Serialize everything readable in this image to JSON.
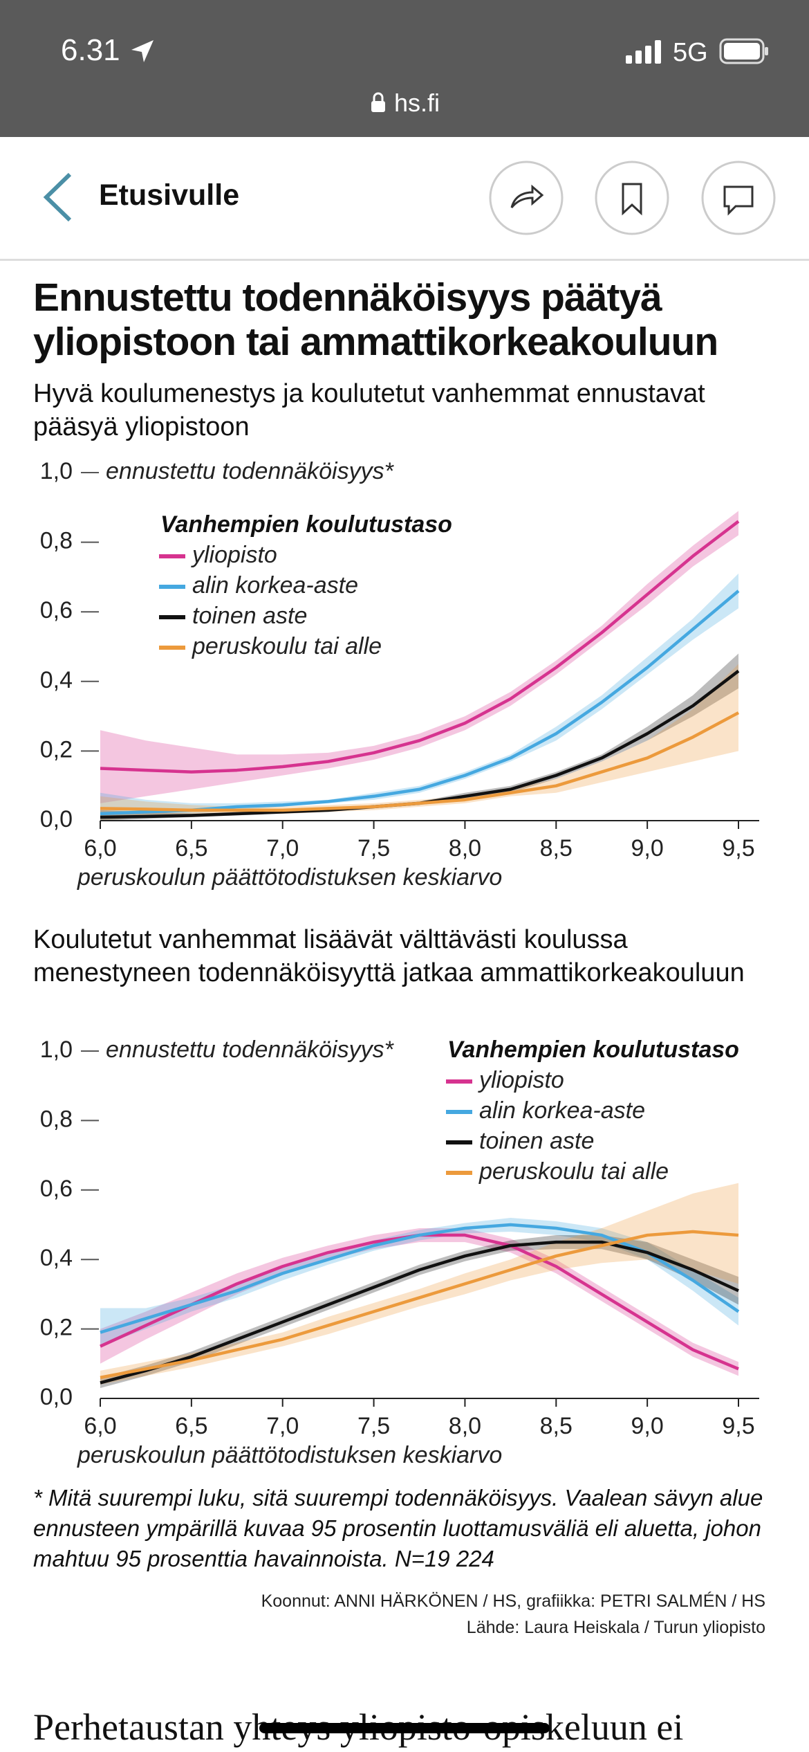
{
  "status_bar": {
    "time": "6.31",
    "network": "5G",
    "url": "hs.fi"
  },
  "nav": {
    "back": "Etusivulle"
  },
  "chart_data": [
    {
      "type": "line",
      "title": "Ennustettu todennäköisyys päätyä yliopistoon tai ammattikorkeakouluun",
      "subtitle": "Hyvä koulumenestys ja koulutetut vanhemmat ennustavat pääsyä yliopistoon",
      "y_label": "ennustettu todennäköisyys*",
      "x_label": "peruskoulun päättötodistuksen keskiarvo",
      "legend_title": "Vanhempien koulutustaso",
      "legend": "upper left",
      "x": [
        6.0,
        6.25,
        6.5,
        6.75,
        7.0,
        7.25,
        7.5,
        7.75,
        8.0,
        8.25,
        8.5,
        8.75,
        9.0,
        9.25,
        9.5
      ],
      "xlim": [
        6.0,
        9.5
      ],
      "ylim": [
        0,
        1
      ],
      "xticks": [
        {
          "value": 6.0,
          "label": "6,0"
        },
        {
          "value": 6.5,
          "label": "6,5"
        },
        {
          "value": 7.0,
          "label": "7,0"
        },
        {
          "value": 7.5,
          "label": "7,5"
        },
        {
          "value": 8.0,
          "label": "8,0"
        },
        {
          "value": 8.5,
          "label": "8,5"
        },
        {
          "value": 9.0,
          "label": "9,0"
        },
        {
          "value": 9.5,
          "label": "9,5"
        }
      ],
      "yticks": [
        {
          "value": 0,
          "label": "0,0"
        },
        {
          "value": 0.2,
          "label": "0,2"
        },
        {
          "value": 0.4,
          "label": "0,4"
        },
        {
          "value": 0.6,
          "label": "0,6"
        },
        {
          "value": 0.8,
          "label": "0,8"
        },
        {
          "value": 1,
          "label": "1,0"
        }
      ],
      "series": [
        {
          "name": "yliopisto",
          "color": "#d6338f",
          "values": [
            0.15,
            0.145,
            0.14,
            0.145,
            0.155,
            0.17,
            0.195,
            0.23,
            0.28,
            0.35,
            0.44,
            0.54,
            0.65,
            0.76,
            0.86
          ],
          "lower": [
            0.05,
            0.07,
            0.09,
            0.11,
            0.13,
            0.15,
            0.175,
            0.21,
            0.26,
            0.33,
            0.42,
            0.52,
            0.62,
            0.73,
            0.82
          ],
          "upper": [
            0.26,
            0.23,
            0.21,
            0.19,
            0.19,
            0.195,
            0.215,
            0.25,
            0.3,
            0.37,
            0.46,
            0.56,
            0.68,
            0.79,
            0.89
          ]
        },
        {
          "name": "alin korkea-aste",
          "color": "#45a8e0",
          "values": [
            0.02,
            0.025,
            0.03,
            0.04,
            0.045,
            0.055,
            0.07,
            0.09,
            0.13,
            0.18,
            0.25,
            0.34,
            0.44,
            0.55,
            0.66
          ],
          "lower": [
            0.0,
            0.01,
            0.02,
            0.03,
            0.04,
            0.05,
            0.06,
            0.08,
            0.12,
            0.17,
            0.23,
            0.32,
            0.42,
            0.52,
            0.61
          ],
          "upper": [
            0.08,
            0.06,
            0.05,
            0.05,
            0.055,
            0.06,
            0.08,
            0.1,
            0.14,
            0.19,
            0.27,
            0.36,
            0.47,
            0.58,
            0.71
          ]
        },
        {
          "name": "toinen aste",
          "color": "#111111",
          "values": [
            0.01,
            0.012,
            0.015,
            0.02,
            0.025,
            0.03,
            0.04,
            0.05,
            0.07,
            0.09,
            0.13,
            0.18,
            0.25,
            0.33,
            0.43
          ],
          "lower": [
            0.0,
            0.005,
            0.01,
            0.015,
            0.02,
            0.025,
            0.035,
            0.045,
            0.06,
            0.08,
            0.12,
            0.17,
            0.23,
            0.3,
            0.38
          ],
          "upper": [
            0.03,
            0.025,
            0.02,
            0.025,
            0.03,
            0.035,
            0.045,
            0.055,
            0.08,
            0.1,
            0.14,
            0.19,
            0.27,
            0.36,
            0.48
          ]
        },
        {
          "name": "peruskoulu tai alle",
          "color": "#ec9a3c",
          "values": [
            0.035,
            0.033,
            0.03,
            0.03,
            0.03,
            0.035,
            0.04,
            0.05,
            0.06,
            0.08,
            0.1,
            0.14,
            0.18,
            0.24,
            0.31
          ],
          "lower": [
            0.0,
            0.01,
            0.015,
            0.02,
            0.02,
            0.025,
            0.03,
            0.04,
            0.05,
            0.07,
            0.08,
            0.11,
            0.14,
            0.17,
            0.2
          ],
          "upper": [
            0.07,
            0.055,
            0.045,
            0.04,
            0.04,
            0.045,
            0.05,
            0.06,
            0.07,
            0.09,
            0.12,
            0.17,
            0.23,
            0.32,
            0.45
          ]
        }
      ]
    },
    {
      "type": "line",
      "subtitle": "Koulutetut vanhemmat lisäävät välttävästi koulussa menestyneen todennäköisyyttä jatkaa ammattikorkeakouluun",
      "y_label": "ennustettu todennäköisyys*",
      "x_label": "peruskoulun päättötodistuksen keskiarvo",
      "legend_title": "Vanhempien koulutustaso",
      "legend": "upper right",
      "x": [
        6.0,
        6.25,
        6.5,
        6.75,
        7.0,
        7.25,
        7.5,
        7.75,
        8.0,
        8.25,
        8.5,
        8.75,
        9.0,
        9.25,
        9.5
      ],
      "xlim": [
        6.0,
        9.5
      ],
      "ylim": [
        0,
        1
      ],
      "xticks": [
        {
          "value": 6.0,
          "label": "6,0"
        },
        {
          "value": 6.5,
          "label": "6,5"
        },
        {
          "value": 7.0,
          "label": "7,0"
        },
        {
          "value": 7.5,
          "label": "7,5"
        },
        {
          "value": 8.0,
          "label": "8,0"
        },
        {
          "value": 8.5,
          "label": "8,5"
        },
        {
          "value": 9.0,
          "label": "9,0"
        },
        {
          "value": 9.5,
          "label": "9,5"
        }
      ],
      "yticks": [
        {
          "value": 0,
          "label": "0,0"
        },
        {
          "value": 0.2,
          "label": "0,2"
        },
        {
          "value": 0.4,
          "label": "0,4"
        },
        {
          "value": 0.6,
          "label": "0,6"
        },
        {
          "value": 0.8,
          "label": "0,8"
        },
        {
          "value": 1,
          "label": "1,0"
        }
      ],
      "series": [
        {
          "name": "yliopisto",
          "color": "#d6338f",
          "values": [
            0.15,
            0.21,
            0.27,
            0.33,
            0.38,
            0.42,
            0.45,
            0.47,
            0.47,
            0.44,
            0.38,
            0.3,
            0.22,
            0.14,
            0.085
          ],
          "lower": [
            0.1,
            0.17,
            0.235,
            0.3,
            0.355,
            0.4,
            0.43,
            0.45,
            0.45,
            0.42,
            0.36,
            0.28,
            0.2,
            0.12,
            0.065
          ],
          "upper": [
            0.2,
            0.25,
            0.305,
            0.36,
            0.405,
            0.44,
            0.47,
            0.49,
            0.49,
            0.46,
            0.4,
            0.32,
            0.24,
            0.16,
            0.105
          ]
        },
        {
          "name": "alin korkea-aste",
          "color": "#45a8e0",
          "values": [
            0.19,
            0.23,
            0.27,
            0.31,
            0.36,
            0.4,
            0.44,
            0.47,
            0.49,
            0.5,
            0.49,
            0.47,
            0.42,
            0.34,
            0.25
          ],
          "lower": [
            0.15,
            0.2,
            0.25,
            0.29,
            0.34,
            0.385,
            0.425,
            0.455,
            0.475,
            0.48,
            0.47,
            0.45,
            0.4,
            0.31,
            0.21
          ],
          "upper": [
            0.26,
            0.26,
            0.29,
            0.33,
            0.38,
            0.415,
            0.455,
            0.485,
            0.505,
            0.52,
            0.51,
            0.49,
            0.45,
            0.37,
            0.29
          ]
        },
        {
          "name": "toinen aste",
          "color": "#111111",
          "values": [
            0.045,
            0.08,
            0.12,
            0.17,
            0.22,
            0.27,
            0.32,
            0.37,
            0.41,
            0.44,
            0.45,
            0.45,
            0.42,
            0.37,
            0.31
          ],
          "lower": [
            0.03,
            0.065,
            0.105,
            0.155,
            0.205,
            0.255,
            0.305,
            0.355,
            0.395,
            0.425,
            0.43,
            0.43,
            0.4,
            0.34,
            0.27
          ],
          "upper": [
            0.06,
            0.095,
            0.135,
            0.185,
            0.235,
            0.285,
            0.335,
            0.385,
            0.425,
            0.455,
            0.47,
            0.47,
            0.45,
            0.4,
            0.35
          ]
        },
        {
          "name": "peruskoulu tai alle",
          "color": "#ec9a3c",
          "values": [
            0.06,
            0.085,
            0.11,
            0.14,
            0.17,
            0.21,
            0.25,
            0.29,
            0.33,
            0.37,
            0.41,
            0.44,
            0.47,
            0.48,
            0.47
          ],
          "lower": [
            0.04,
            0.065,
            0.09,
            0.12,
            0.15,
            0.185,
            0.225,
            0.265,
            0.3,
            0.34,
            0.37,
            0.39,
            0.4,
            0.37,
            0.33
          ],
          "upper": [
            0.08,
            0.105,
            0.13,
            0.16,
            0.19,
            0.235,
            0.275,
            0.315,
            0.36,
            0.4,
            0.45,
            0.49,
            0.54,
            0.59,
            0.62
          ]
        }
      ]
    }
  ],
  "footnote": "* Mitä suurempi luku, sitä suurempi todennäköisyys. Vaalean sävyn alue ennusteen ympärillä kuvaa 95 prosentin luottamusväliä eli aluetta, johon mahtuu 95 prosenttia havainnoista. N=19 224",
  "credits": {
    "compiled": "Koonnut: ANNI HÄRKÖNEN / HS, grafiikka: PETRI SALMÉN / HS",
    "source": "Lähde: Laura Heiskala / Turun yliopisto"
  },
  "next_heading": "Perhetaustan yhteys yliopisto-opiskeluun ei"
}
